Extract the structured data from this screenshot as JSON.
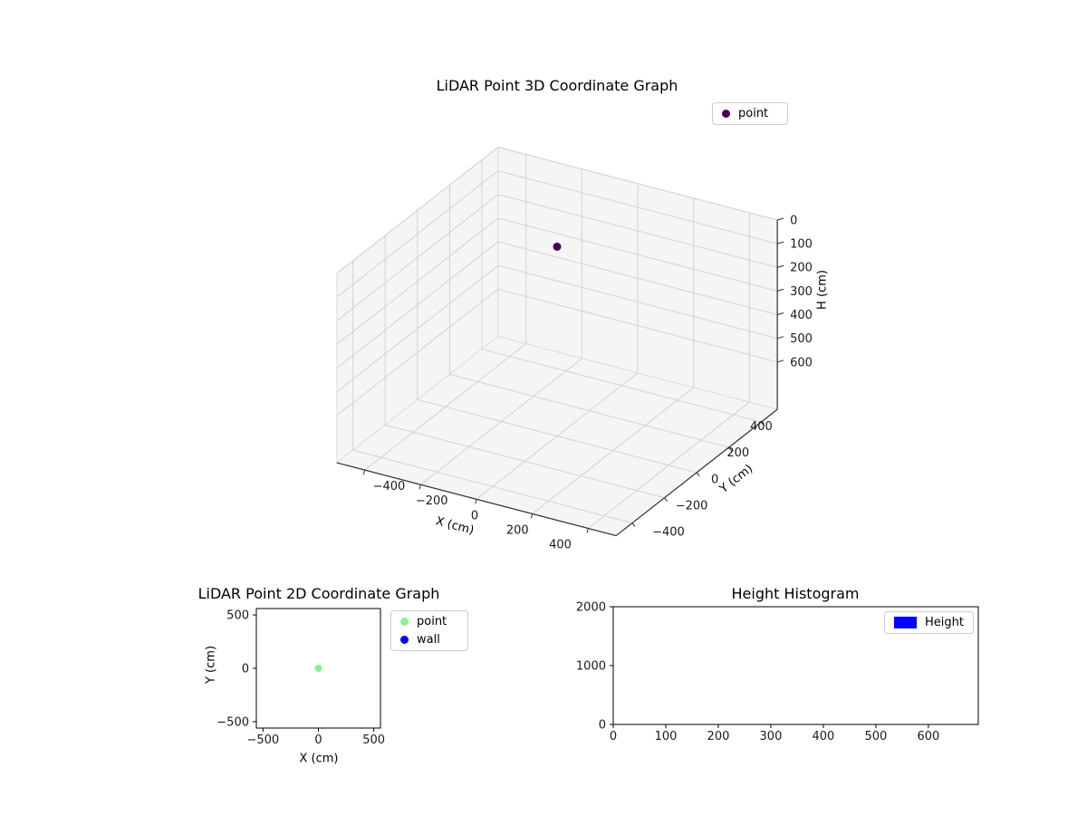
{
  "figure": {
    "background": "#ffffff"
  },
  "chart_data": [
    {
      "id": "lidar-3d",
      "type": "scatter3d",
      "title": "LiDAR Point 3D Coordinate Graph",
      "xlabel": "X (cm)",
      "ylabel": "Y (cm)",
      "zlabel": "H (cm)",
      "xlim": [
        -500,
        500
      ],
      "ylim": [
        -500,
        500
      ],
      "zlim": [
        0,
        800
      ],
      "z_axis_inverted": true,
      "xticks": [
        -400,
        -200,
        0,
        200,
        400
      ],
      "yticks": [
        -400,
        -200,
        0,
        200,
        400
      ],
      "zticks": [
        0,
        100,
        200,
        300,
        400,
        500,
        600
      ],
      "points": [
        {
          "x": 0,
          "y": 0,
          "h": 0
        }
      ],
      "point_color": "#440154",
      "legend": [
        {
          "label": "point",
          "color": "#440154",
          "marker": "dot"
        }
      ],
      "legend_position": "upper-right",
      "grid": true,
      "colors": {
        "pane": "#f5f5f5",
        "pane_edge": "#dddddd",
        "grid": "#d2d2d2",
        "axis_line": "#2f2f2f"
      }
    },
    {
      "id": "lidar-2d",
      "type": "scatter",
      "title": "LiDAR Point 2D Coordinate Graph",
      "xlabel": "X (cm)",
      "ylabel": "Y (cm)",
      "xlim": [
        -560,
        560
      ],
      "ylim": [
        -560,
        560
      ],
      "xticks": [
        -500,
        0,
        500
      ],
      "yticks": [
        -500,
        0,
        500
      ],
      "series": [
        {
          "name": "point",
          "color": "#90ee90",
          "points": [
            [
              0,
              0
            ]
          ]
        },
        {
          "name": "wall",
          "color": "#0000ff",
          "points": []
        }
      ],
      "legend_position": "outside-right",
      "grid": false
    },
    {
      "id": "height-histogram",
      "type": "bar",
      "title": "Height Histogram",
      "xlabel": "",
      "ylabel": "",
      "xlim": [
        0,
        695
      ],
      "ylim": [
        0,
        2000
      ],
      "xticks": [
        0,
        100,
        200,
        300,
        400,
        500,
        600
      ],
      "yticks": [
        0,
        1000,
        2000
      ],
      "bars": [],
      "legend": [
        {
          "label": "Height",
          "color": "#0000ff",
          "marker": "patch"
        }
      ],
      "legend_position": "upper-right",
      "grid": false
    }
  ]
}
